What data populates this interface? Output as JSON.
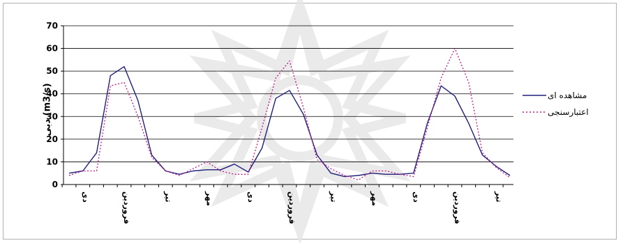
{
  "chart_data": {
    "type": "line",
    "title": "",
    "xlabel": "",
    "ylabel": "دبی (m3/s)",
    "ylim": [
      0,
      70
    ],
    "yticks": [
      0,
      10,
      20,
      30,
      40,
      50,
      60,
      70
    ],
    "grid": true,
    "legend_position": "right",
    "x_tick_labels": [
      {
        "index": 1,
        "label": "دی"
      },
      {
        "index": 4,
        "label": "فروردین"
      },
      {
        "index": 7,
        "label": "تیر"
      },
      {
        "index": 10,
        "label": "مهر"
      },
      {
        "index": 13,
        "label": "دی"
      },
      {
        "index": 16,
        "label": "فروردین"
      },
      {
        "index": 19,
        "label": "تیر"
      },
      {
        "index": 22,
        "label": "مهر"
      },
      {
        "index": 25,
        "label": "دی"
      },
      {
        "index": 28,
        "label": "فروردین"
      },
      {
        "index": 31,
        "label": "تیر"
      }
    ],
    "series": [
      {
        "name": "مشاهده ای",
        "color": "#1f1f7a",
        "style": "solid",
        "values": [
          5,
          6,
          14,
          48,
          52,
          37,
          13,
          6,
          4.5,
          6,
          6.5,
          6.5,
          9,
          5.5,
          16,
          38,
          41.5,
          31,
          13,
          5,
          3.5,
          4,
          5,
          4.5,
          4.5,
          5,
          27,
          43.5,
          39,
          27,
          13,
          8,
          4
        ]
      },
      {
        "name": "اعتبارسنجی",
        "color": "#c0188c",
        "style": "dotted",
        "values": [
          4,
          6,
          6,
          43.5,
          45,
          30,
          12,
          6,
          4,
          7,
          10,
          6,
          4.5,
          4.5,
          25,
          47,
          54.5,
          34,
          11,
          7,
          4,
          2,
          6,
          6,
          4.5,
          3.5,
          25,
          47,
          60,
          45,
          14,
          7.5,
          3
        ]
      }
    ]
  },
  "watermark_icon": "star-ornament-icon"
}
